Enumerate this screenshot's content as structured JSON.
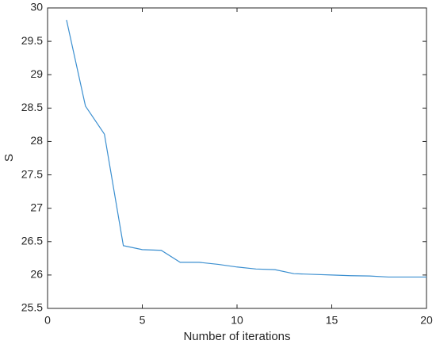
{
  "chart_data": {
    "type": "line",
    "x_label": "Number of iterations",
    "y_label": "S",
    "x": [
      1,
      2,
      3,
      4,
      5,
      6,
      7,
      8,
      9,
      10,
      11,
      12,
      13,
      14,
      15,
      16,
      17,
      18,
      19,
      20
    ],
    "series": [
      {
        "color": "#3b8fd0",
        "values": [
          29.82,
          28.53,
          28.11,
          26.44,
          26.38,
          26.37,
          26.19,
          26.19,
          26.16,
          26.12,
          26.09,
          26.08,
          26.02,
          26.01,
          26.0,
          25.99,
          25.985,
          25.97,
          25.97,
          25.97
        ]
      }
    ],
    "xlim": [
      0,
      20
    ],
    "xticks": [
      0,
      5,
      10,
      15,
      20
    ],
    "ylim": [
      25.5,
      30
    ],
    "yticks": [
      25.5,
      26,
      26.5,
      27,
      27.5,
      28,
      28.5,
      29,
      29.5,
      30
    ],
    "grid": false
  }
}
